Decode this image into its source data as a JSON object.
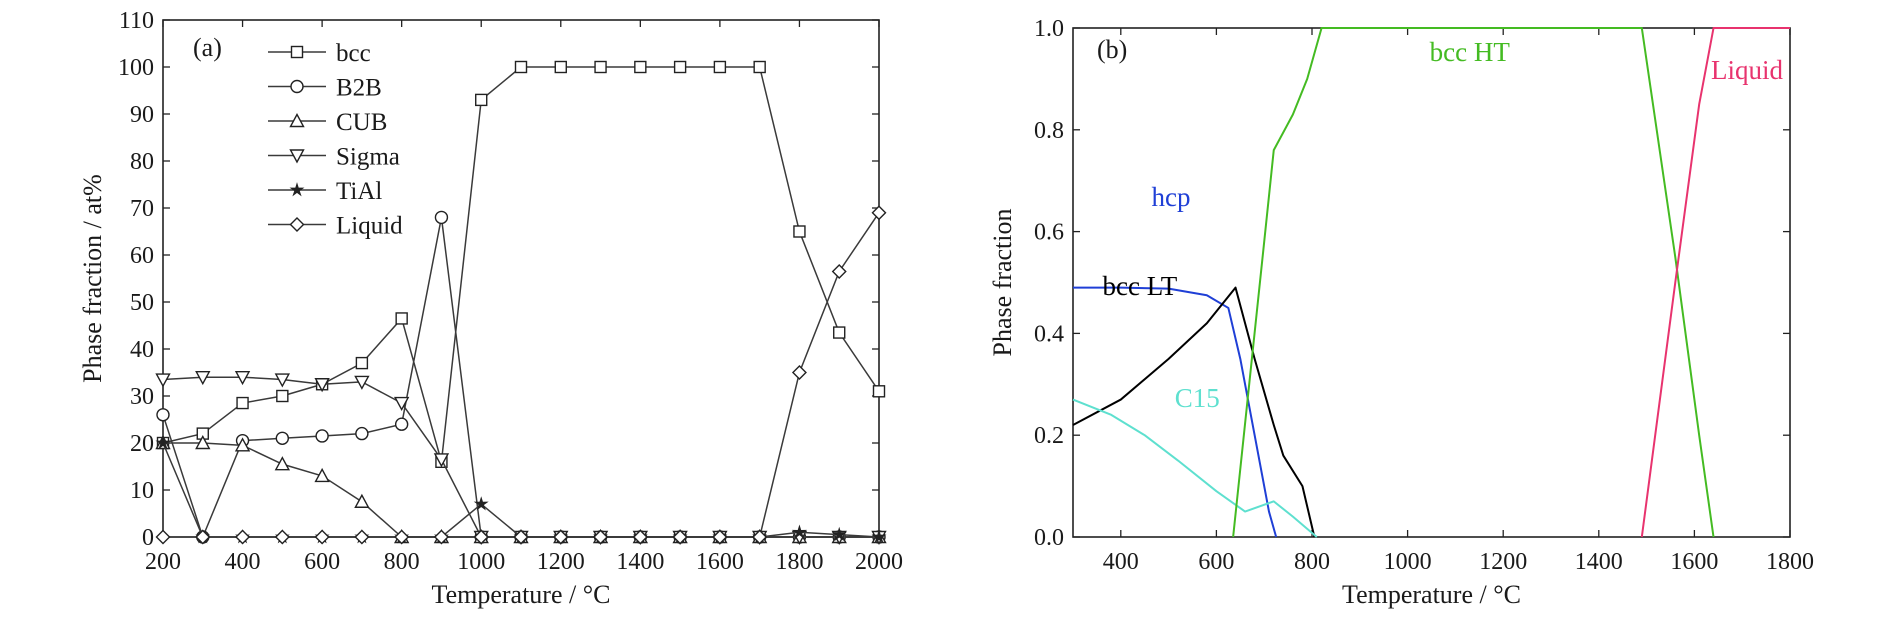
{
  "chart_data": [
    {
      "type": "line",
      "panel_label": "(a)",
      "xlabel": "Temperature / °C",
      "ylabel": "Phase fraction / at%",
      "xlim": [
        200,
        2000
      ],
      "ylim": [
        0,
        110
      ],
      "xticks": [
        200,
        400,
        600,
        800,
        1000,
        1200,
        1400,
        1600,
        1800,
        2000
      ],
      "yticks": [
        0,
        10,
        20,
        30,
        40,
        50,
        60,
        70,
        80,
        90,
        100,
        110
      ],
      "legend_position": "top-left",
      "x": [
        200,
        300,
        400,
        500,
        600,
        700,
        800,
        900,
        1000,
        1100,
        1200,
        1300,
        1400,
        1500,
        1600,
        1700,
        1800,
        1900,
        2000
      ],
      "series": [
        {
          "name": "bcc",
          "marker": "square",
          "values": [
            20,
            22,
            28.5,
            30,
            32.5,
            37,
            46.5,
            16,
            93,
            100,
            100,
            100,
            100,
            100,
            100,
            100,
            65,
            43.5,
            31
          ]
        },
        {
          "name": "B2B",
          "marker": "circle",
          "values": [
            26,
            0,
            20.5,
            21,
            21.5,
            22,
            24,
            68,
            0,
            0,
            0,
            0,
            0,
            0,
            0,
            0,
            0,
            0,
            0
          ]
        },
        {
          "name": "CUB",
          "marker": "triangle-up",
          "values": [
            20,
            20,
            19.5,
            15.5,
            13,
            7.5,
            0,
            0,
            0,
            0,
            0,
            0,
            0,
            0,
            0,
            0,
            0,
            0,
            0
          ]
        },
        {
          "name": "Sigma",
          "marker": "triangle-down",
          "values": [
            33.5,
            34,
            34,
            33.5,
            32.5,
            33,
            28.5,
            16.5,
            0,
            0,
            0,
            0,
            0,
            0,
            0,
            0,
            0,
            0,
            0
          ]
        },
        {
          "name": "TiAl",
          "marker": "star",
          "values": [
            20,
            0,
            0,
            0,
            0,
            0,
            0,
            0,
            7,
            0,
            0,
            0,
            0,
            0,
            0,
            0,
            1,
            0.5,
            0
          ]
        },
        {
          "name": "Liquid",
          "marker": "diamond",
          "values": [
            0,
            0,
            0,
            0,
            0,
            0,
            0,
            0,
            0,
            0,
            0,
            0,
            0,
            0,
            0,
            0,
            35,
            56.5,
            69
          ]
        }
      ]
    },
    {
      "type": "line",
      "panel_label": "(b)",
      "xlabel": "Temperature / °C",
      "ylabel": "Phase fraction",
      "xlim": [
        300,
        1800
      ],
      "ylim": [
        0,
        1.0
      ],
      "xticks": [
        400,
        600,
        800,
        1000,
        1200,
        1400,
        1600,
        1800
      ],
      "yticks": [
        0,
        0.2,
        0.4,
        0.6,
        0.8,
        1.0
      ],
      "series": [
        {
          "name": "hcp",
          "color": "#1f3fd6",
          "points": [
            [
              300,
              0.49
            ],
            [
              400,
              0.49
            ],
            [
              500,
              0.488
            ],
            [
              580,
              0.475
            ],
            [
              625,
              0.45
            ],
            [
              650,
              0.35
            ],
            [
              680,
              0.2
            ],
            [
              710,
              0.05
            ],
            [
              725,
              0
            ]
          ]
        },
        {
          "name": "bcc LT",
          "color": "#000000",
          "points": [
            [
              300,
              0.22
            ],
            [
              400,
              0.27
            ],
            [
              500,
              0.35
            ],
            [
              580,
              0.42
            ],
            [
              640,
              0.49
            ],
            [
              680,
              0.35
            ],
            [
              720,
              0.22
            ],
            [
              740,
              0.16
            ],
            [
              780,
              0.1
            ],
            [
              805,
              0
            ]
          ]
        },
        {
          "name": "C15",
          "color": "#5ee0cf",
          "points": [
            [
              300,
              0.27
            ],
            [
              380,
              0.24
            ],
            [
              450,
              0.2
            ],
            [
              520,
              0.15
            ],
            [
              600,
              0.09
            ],
            [
              660,
              0.05
            ],
            [
              720,
              0.07
            ],
            [
              760,
              0.04
            ],
            [
              810,
              0
            ]
          ]
        },
        {
          "name": "bcc HT",
          "color": "#44bb22",
          "points": [
            [
              635,
              0
            ],
            [
              700,
              0.58
            ],
            [
              720,
              0.76
            ],
            [
              760,
              0.83
            ],
            [
              790,
              0.9
            ],
            [
              820,
              1.0
            ],
            [
              1490,
              1.0
            ],
            [
              1560,
              0.55
            ],
            [
              1610,
              0.2
            ],
            [
              1640,
              0
            ]
          ]
        },
        {
          "name": "Liquid",
          "color": "#e8336e",
          "points": [
            [
              1490,
              0
            ],
            [
              1560,
              0.5
            ],
            [
              1610,
              0.85
            ],
            [
              1640,
              1.0
            ],
            [
              1800,
              1.0
            ]
          ]
        }
      ]
    }
  ]
}
